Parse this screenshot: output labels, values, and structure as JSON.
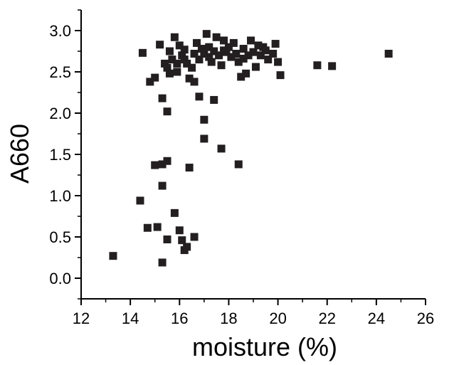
{
  "chart_data": {
    "type": "scatter",
    "xlabel": "moisture (%)",
    "ylabel": "A660",
    "xlim": [
      12,
      26
    ],
    "ylim": [
      -0.25,
      3.25
    ],
    "xticks": [
      "12",
      "14",
      "16",
      "18",
      "20",
      "22",
      "24",
      "26"
    ],
    "yticks": [
      "0.0",
      "0.5",
      "1.0",
      "1.5",
      "2.0",
      "2.5",
      "3.0"
    ],
    "grid": false,
    "marker": "square",
    "marker_color": "#231f20",
    "series": [
      {
        "points": [
          [
            13.3,
            0.27
          ],
          [
            14.4,
            0.94
          ],
          [
            14.7,
            0.61
          ],
          [
            15.1,
            0.62
          ],
          [
            15.3,
            0.19
          ],
          [
            15.5,
            0.47
          ],
          [
            15.8,
            0.79
          ],
          [
            16.0,
            0.58
          ],
          [
            16.1,
            0.46
          ],
          [
            16.2,
            0.34
          ],
          [
            16.3,
            0.38
          ],
          [
            16.6,
            0.5
          ],
          [
            15.0,
            1.37
          ],
          [
            15.3,
            1.38
          ],
          [
            15.3,
            1.12
          ],
          [
            15.5,
            1.42
          ],
          [
            16.4,
            1.34
          ],
          [
            17.0,
            1.69
          ],
          [
            17.7,
            1.57
          ],
          [
            18.4,
            1.38
          ],
          [
            15.3,
            2.18
          ],
          [
            15.5,
            2.02
          ],
          [
            16.8,
            2.2
          ],
          [
            17.0,
            1.92
          ],
          [
            17.4,
            2.16
          ],
          [
            14.8,
            2.38
          ],
          [
            15.0,
            2.43
          ],
          [
            14.5,
            2.73
          ],
          [
            15.2,
            2.83
          ],
          [
            15.4,
            2.6
          ],
          [
            15.5,
            2.55
          ],
          [
            15.6,
            2.75
          ],
          [
            15.7,
            2.65
          ],
          [
            15.8,
            2.92
          ],
          [
            15.9,
            2.5
          ],
          [
            16.0,
            2.82
          ],
          [
            16.1,
            2.7
          ],
          [
            16.2,
            2.77
          ],
          [
            16.3,
            2.6
          ],
          [
            16.4,
            2.42
          ],
          [
            16.5,
            2.55
          ],
          [
            16.6,
            2.38
          ],
          [
            16.7,
            2.85
          ],
          [
            16.8,
            2.65
          ],
          [
            16.9,
            2.78
          ],
          [
            17.0,
            2.72
          ],
          [
            17.1,
            2.96
          ],
          [
            17.2,
            2.8
          ],
          [
            17.3,
            2.62
          ],
          [
            17.4,
            2.75
          ],
          [
            17.5,
            2.92
          ],
          [
            17.6,
            2.7
          ],
          [
            17.7,
            2.58
          ],
          [
            17.8,
            2.88
          ],
          [
            17.9,
            2.74
          ],
          [
            18.0,
            2.8
          ],
          [
            18.1,
            2.68
          ],
          [
            18.2,
            2.85
          ],
          [
            18.3,
            2.72
          ],
          [
            18.4,
            2.62
          ],
          [
            18.5,
            2.44
          ],
          [
            18.6,
            2.78
          ],
          [
            18.7,
            2.48
          ],
          [
            18.8,
            2.7
          ],
          [
            18.9,
            2.88
          ],
          [
            19.0,
            2.74
          ],
          [
            19.1,
            2.56
          ],
          [
            19.2,
            2.82
          ],
          [
            19.3,
            2.7
          ],
          [
            19.5,
            2.76
          ],
          [
            19.6,
            2.65
          ],
          [
            19.8,
            2.72
          ],
          [
            19.9,
            2.84
          ],
          [
            20.0,
            2.62
          ],
          [
            20.1,
            2.46
          ],
          [
            15.6,
            2.48
          ],
          [
            15.9,
            2.6
          ],
          [
            16.2,
            2.65
          ],
          [
            16.6,
            2.72
          ],
          [
            17.2,
            2.68
          ],
          [
            17.8,
            2.76
          ],
          [
            18.6,
            2.66
          ],
          [
            19.4,
            2.8
          ],
          [
            21.6,
            2.58
          ],
          [
            22.2,
            2.57
          ],
          [
            24.5,
            2.72
          ]
        ]
      }
    ]
  }
}
